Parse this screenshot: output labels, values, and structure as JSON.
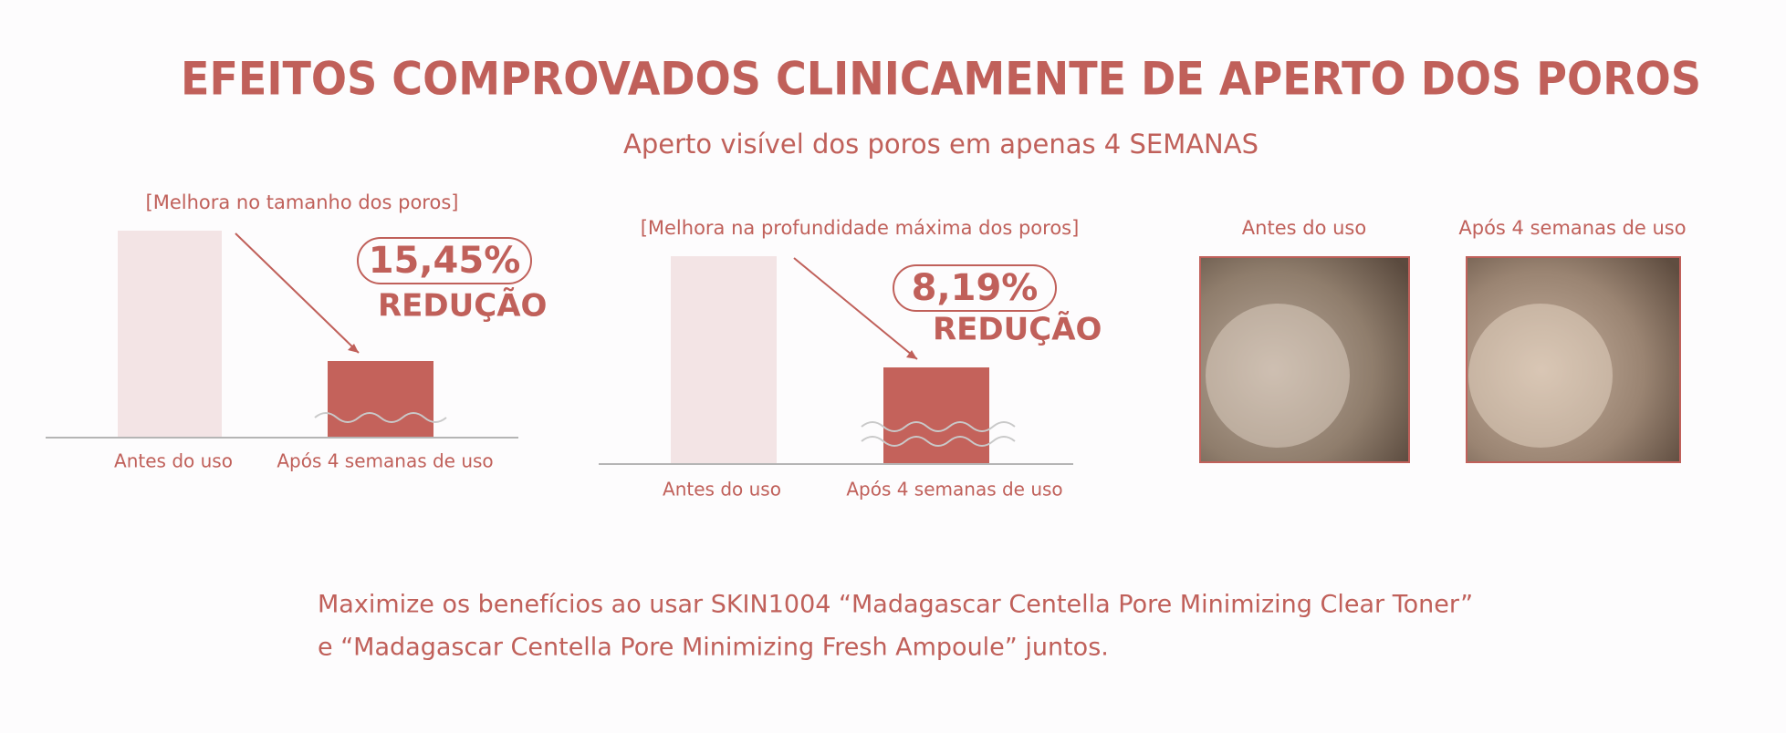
{
  "header": {
    "title": "EFEITOS COMPROVADOS CLINICAMENTE DE APERTO DOS POROS",
    "subtitle": "Aperto visível dos poros em apenas 4 SEMANAS"
  },
  "charts": [
    {
      "caption": "[Melhora no tamanho dos poros]",
      "before_label": "Antes do uso",
      "after_label": "Após 4 semanas de uso",
      "reduction_value": "15,45%",
      "reduction_label": "REDUÇÃO"
    },
    {
      "caption": "[Melhora na profundidade máxima dos poros]",
      "before_label": "Antes do uso",
      "after_label": "Após 4 semanas de uso",
      "reduction_value": "8,19%",
      "reduction_label": "REDUÇÃO"
    }
  ],
  "photos": {
    "before_label": "Antes do uso",
    "after_label": "Após 4 semanas de uso"
  },
  "footer": [
    "Maximize os benefícios ao usar SKIN1004 “Madagascar Centella Pore Minimizing Clear Toner”",
    "e “Madagascar Centella Pore Minimizing Fresh Ampoule” juntos."
  ]
}
